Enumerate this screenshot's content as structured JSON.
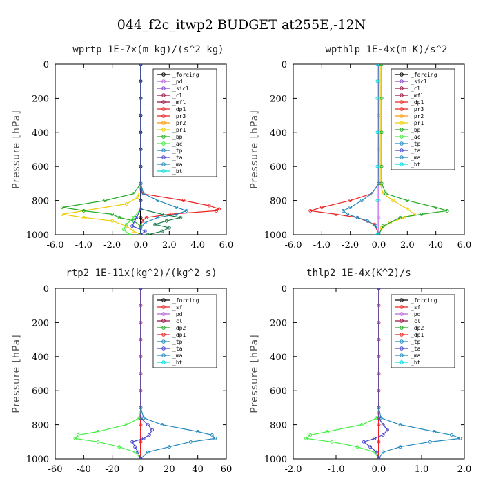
{
  "figure_title": "044_f2c_itwp2  BUDGET at255E,-12N",
  "chart_data": [
    {
      "type": "line",
      "title": "wprtp  1E-7x(m kg)/(s^2 kg)",
      "ylabel": "Pressure [hPa]",
      "xlim": [
        -6,
        6
      ],
      "ylim": [
        1000,
        0
      ],
      "xticks": [
        "-6.0",
        "-4.0",
        "-2.0",
        "0.0",
        "2.0",
        "4.0",
        "6.0"
      ],
      "yticks": [
        "0",
        "200",
        "400",
        "600",
        "800",
        "1000"
      ],
      "legend": [
        "_forcing",
        "_pd",
        "_sicl",
        "_cl",
        "_mfl",
        "_dp1",
        "_pr3",
        "_pr2",
        "_pr1",
        "_bp",
        "_ac",
        "_tp",
        "_ta",
        "_ma",
        "_bt"
      ],
      "legend_placement": "top-right",
      "series": [
        {
          "name": "_forcing",
          "color": "#000000",
          "p": [
            0,
            100,
            200,
            300,
            400,
            500,
            600,
            700,
            800,
            900,
            1000
          ],
          "values": [
            0,
            0,
            0,
            0,
            0,
            0,
            0,
            0,
            0,
            0,
            0
          ]
        },
        {
          "name": "_dp1",
          "color": "#ee2222",
          "p": [
            0,
            700,
            760,
            800,
            830,
            850,
            860,
            880,
            900,
            920,
            950,
            1000
          ],
          "values": [
            0,
            0,
            0.1,
            3,
            4.8,
            5.5,
            5.3,
            2,
            0.4,
            0.1,
            0,
            0
          ]
        },
        {
          "name": "_pr1",
          "color": "#eecc00",
          "p": [
            0,
            700,
            780,
            820,
            860,
            880,
            900,
            920,
            950,
            980,
            1000
          ],
          "values": [
            0,
            0,
            -0.2,
            -1,
            -4,
            -5.5,
            -4,
            -2,
            -1,
            -0.5,
            0
          ]
        },
        {
          "name": "_ac",
          "color": "#22aa22",
          "p": [
            0,
            700,
            760,
            800,
            840,
            860,
            880,
            900,
            920,
            950,
            1000
          ],
          "values": [
            0,
            0,
            -0.5,
            -2.5,
            -5.5,
            -4,
            -2,
            -1.5,
            -0.5,
            0,
            0
          ]
        },
        {
          "name": "_tp",
          "color": "#44ee44",
          "p": [
            0,
            850,
            900,
            940,
            970,
            1000
          ],
          "values": [
            0,
            0,
            -0.5,
            -1,
            -1.2,
            -0.8
          ]
        },
        {
          "name": "_ma",
          "color": "#2288bb",
          "p": [
            0,
            700,
            760,
            800,
            840,
            860,
            880,
            900,
            930,
            960,
            1000
          ],
          "values": [
            0,
            0,
            0.2,
            1.2,
            2.5,
            3.2,
            2.5,
            1.2,
            0.3,
            0,
            0
          ]
        },
        {
          "name": "_bp",
          "color": "#1a7a4a",
          "p": [
            0,
            850,
            880,
            900,
            920,
            940,
            960,
            980,
            1000
          ],
          "values": [
            0,
            0,
            1.5,
            2.8,
            1.8,
            1,
            2,
            1.5,
            0.5
          ]
        },
        {
          "name": "_ta",
          "color": "#4444cc",
          "p": [
            0,
            850,
            900,
            950,
            980,
            1000
          ],
          "values": [
            0,
            0,
            -0.3,
            -0.6,
            0.3,
            0
          ]
        }
      ]
    },
    {
      "type": "line",
      "title": "wpthlp  1E-4x(m K)/s^2",
      "ylabel": "Pressure [hPa]",
      "xlim": [
        -6,
        6
      ],
      "ylim": [
        1000,
        0
      ],
      "xticks": [
        "-6.0",
        "-4.0",
        "-2.0",
        "0.0",
        "2.0",
        "4.0",
        "6.0"
      ],
      "yticks": [
        "0",
        "200",
        "400",
        "600",
        "800",
        "1000"
      ],
      "legend": [
        "_forcing",
        "_sicl",
        "_cl",
        "_mfl",
        "_dp1",
        "_pr3",
        "_pr2",
        "_pr1",
        "_bp",
        "_ac",
        "_tp",
        "_ta",
        "_ma",
        "_bt"
      ],
      "legend_placement": "top-right",
      "series": [
        {
          "name": "_forcing",
          "color": "#cc88ee",
          "p": [
            0,
            100,
            200,
            300,
            400,
            500,
            600,
            700,
            800,
            900,
            1000
          ],
          "values": [
            0,
            0,
            0,
            0,
            0,
            0,
            0,
            0,
            0,
            0,
            0
          ]
        },
        {
          "name": "_pr1",
          "color": "#eecc00",
          "p": [
            0,
            200,
            400,
            600,
            700,
            760,
            800,
            850,
            880,
            900,
            930,
            960,
            1000
          ],
          "values": [
            0.1,
            0.1,
            0.1,
            0.1,
            0.1,
            0.3,
            1,
            2,
            2.5,
            1.8,
            0.8,
            0.2,
            0
          ]
        },
        {
          "name": "_ac",
          "color": "#22aa22",
          "p": [
            0,
            200,
            400,
            600,
            700,
            760,
            800,
            840,
            860,
            880,
            900,
            950,
            1000
          ],
          "values": [
            0.2,
            0.2,
            0.2,
            0.2,
            0.2,
            0.5,
            2,
            4,
            4.8,
            3,
            1.5,
            0.3,
            0
          ]
        },
        {
          "name": "_dp1",
          "color": "#ee2222",
          "p": [
            0,
            700,
            760,
            800,
            840,
            860,
            880,
            900,
            940,
            1000
          ],
          "values": [
            0,
            0,
            -0.5,
            -2,
            -4,
            -4.8,
            -3,
            -1.5,
            -0.3,
            0
          ]
        },
        {
          "name": "_ma",
          "color": "#2288bb",
          "p": [
            0,
            700,
            760,
            800,
            840,
            860,
            880,
            900,
            920,
            950,
            1000
          ],
          "values": [
            0,
            0,
            -0.5,
            -1.2,
            -2,
            -2.5,
            -2.2,
            -1.5,
            -0.8,
            -0.2,
            0
          ]
        },
        {
          "name": "_bt",
          "color": "#00dddd",
          "p": [
            0,
            100,
            200,
            400,
            600,
            800,
            1000
          ],
          "values": [
            -0.1,
            -0.1,
            -0.1,
            -0.1,
            -0.1,
            -0.1,
            -0.1
          ]
        }
      ]
    },
    {
      "type": "line",
      "title": "rtp2  1E-11x(kg^2)/(kg^2 s)",
      "ylabel": "Pressure [hPa]",
      "xlim": [
        -60,
        60
      ],
      "ylim": [
        1000,
        0
      ],
      "xticks": [
        "-60",
        "-40",
        "-20",
        "0",
        "20",
        "40",
        "60"
      ],
      "yticks": [
        "0",
        "200",
        "400",
        "600",
        "800",
        "1000"
      ],
      "legend": [
        "_forcing",
        "_sf",
        "_pd",
        "_cl",
        "_dp2",
        "_dp1",
        "_tp",
        "_ta",
        "_ma",
        "_bt"
      ],
      "legend_placement": "top-right",
      "series": [
        {
          "name": "_forcing",
          "color": "#ee2222",
          "p": [
            0,
            100,
            200,
            300,
            400,
            500,
            600,
            700,
            800,
            900,
            1000
          ],
          "values": [
            0,
            0,
            0,
            0,
            0,
            0,
            0,
            0,
            0,
            0,
            0
          ]
        },
        {
          "name": "_dp1",
          "color": "#44ee44",
          "p": [
            0,
            700,
            760,
            800,
            840,
            860,
            880,
            900,
            930,
            960,
            1000
          ],
          "values": [
            0,
            0,
            -1,
            -10,
            -30,
            -44,
            -46,
            -30,
            -15,
            -4,
            0
          ]
        },
        {
          "name": "_tp",
          "color": "#2288bb",
          "p": [
            0,
            700,
            760,
            800,
            840,
            860,
            880,
            900,
            930,
            960,
            1000
          ],
          "values": [
            0,
            0,
            2,
            15,
            40,
            50,
            52,
            35,
            20,
            5,
            0
          ]
        },
        {
          "name": "_ta",
          "color": "#4444cc",
          "p": [
            0,
            760,
            800,
            830,
            860,
            880,
            900,
            930,
            960,
            1000
          ],
          "values": [
            0,
            0,
            5,
            8,
            6,
            2,
            -6,
            -4,
            -2,
            0
          ]
        }
      ]
    },
    {
      "type": "line",
      "title": "thlp2  1E-4x(K^2)/s",
      "ylabel": "Pressure [hPa]",
      "xlim": [
        -2,
        2
      ],
      "ylim": [
        1000,
        0
      ],
      "xticks": [
        "-2.0",
        "-1.0",
        "0.0",
        "1.0",
        "2.0"
      ],
      "yticks": [
        "0",
        "200",
        "400",
        "600",
        "800",
        "1000"
      ],
      "legend": [
        "_forcing",
        "_sf",
        "_pd",
        "_cl",
        "_dp2",
        "_dp1",
        "_tp",
        "_ta",
        "_ma",
        "_bt"
      ],
      "legend_placement": "top-right",
      "series": [
        {
          "name": "_forcing",
          "color": "#ee2222",
          "p": [
            0,
            100,
            200,
            300,
            400,
            500,
            600,
            700,
            800,
            900,
            1000
          ],
          "values": [
            0,
            0,
            0,
            0,
            0,
            0,
            0,
            0,
            0,
            0,
            0
          ]
        },
        {
          "name": "_dp1",
          "color": "#44ee44",
          "p": [
            0,
            700,
            760,
            800,
            840,
            860,
            880,
            900,
            930,
            960,
            1000
          ],
          "values": [
            0,
            0,
            -0.05,
            -0.4,
            -1.2,
            -1.6,
            -1.7,
            -1.1,
            -0.5,
            -0.1,
            0
          ]
        },
        {
          "name": "_tp",
          "color": "#2288bb",
          "p": [
            0,
            700,
            760,
            800,
            840,
            860,
            880,
            900,
            930,
            960,
            1000
          ],
          "values": [
            0,
            0,
            0.05,
            0.5,
            1.3,
            1.7,
            1.9,
            1.2,
            0.5,
            0.1,
            0
          ]
        },
        {
          "name": "_ta",
          "color": "#4444cc",
          "p": [
            0,
            760,
            800,
            830,
            860,
            880,
            900,
            930,
            960,
            1000
          ],
          "values": [
            0,
            0,
            0.1,
            0.2,
            0.1,
            -0.1,
            -0.35,
            -0.2,
            -0.05,
            0
          ]
        }
      ]
    }
  ],
  "legend_colors": {
    "_forcing": "#000000",
    "_sf": "#ee2222",
    "_pd": "#bb66dd",
    "_sicl": "#8844cc",
    "_cl": "#991144",
    "_mfl": "#991144",
    "_dp2": "#22aa22",
    "_dp1": "#ee2222",
    "_pr3": "#ee2222",
    "_pr2": "#ff9900",
    "_pr1": "#eecc00",
    "_bp": "#22aa22",
    "_ac": "#44ee44",
    "_tp": "#2288bb",
    "_ta": "#4444cc",
    "_ma": "#2288bb",
    "_bt": "#00dddd"
  }
}
